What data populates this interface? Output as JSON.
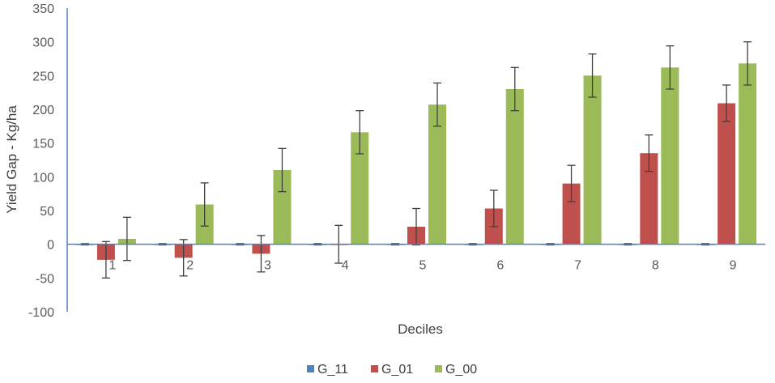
{
  "chart_data": {
    "type": "bar",
    "title": "",
    "xlabel": "Deciles",
    "ylabel": "Yield Gap - Kg/ha",
    "ylim": [
      -100,
      350
    ],
    "yticks": [
      -100,
      -50,
      0,
      50,
      100,
      150,
      200,
      250,
      300,
      350
    ],
    "categories": [
      "1",
      "2",
      "3",
      "4",
      "5",
      "6",
      "7",
      "8",
      "9"
    ],
    "grid": false,
    "legend_position": "bottom",
    "series": [
      {
        "name": "G_11",
        "color": "#4F81BD",
        "values": [
          0,
          0,
          0,
          0,
          0,
          0,
          0,
          0,
          0
        ],
        "error": [
          1,
          1,
          1,
          1,
          1,
          1,
          1,
          1,
          1
        ]
      },
      {
        "name": "G_01",
        "color": "#C0504D",
        "values": [
          -23,
          -20,
          -14,
          0,
          26,
          53,
          90,
          135,
          209
        ],
        "error": [
          27,
          27,
          27,
          28,
          27,
          27,
          27,
          27,
          27
        ]
      },
      {
        "name": "G_00",
        "color": "#9BBB59",
        "values": [
          8,
          59,
          110,
          166,
          207,
          230,
          250,
          262,
          268
        ],
        "error": [
          32,
          32,
          32,
          32,
          32,
          32,
          32,
          32,
          32
        ]
      }
    ]
  }
}
